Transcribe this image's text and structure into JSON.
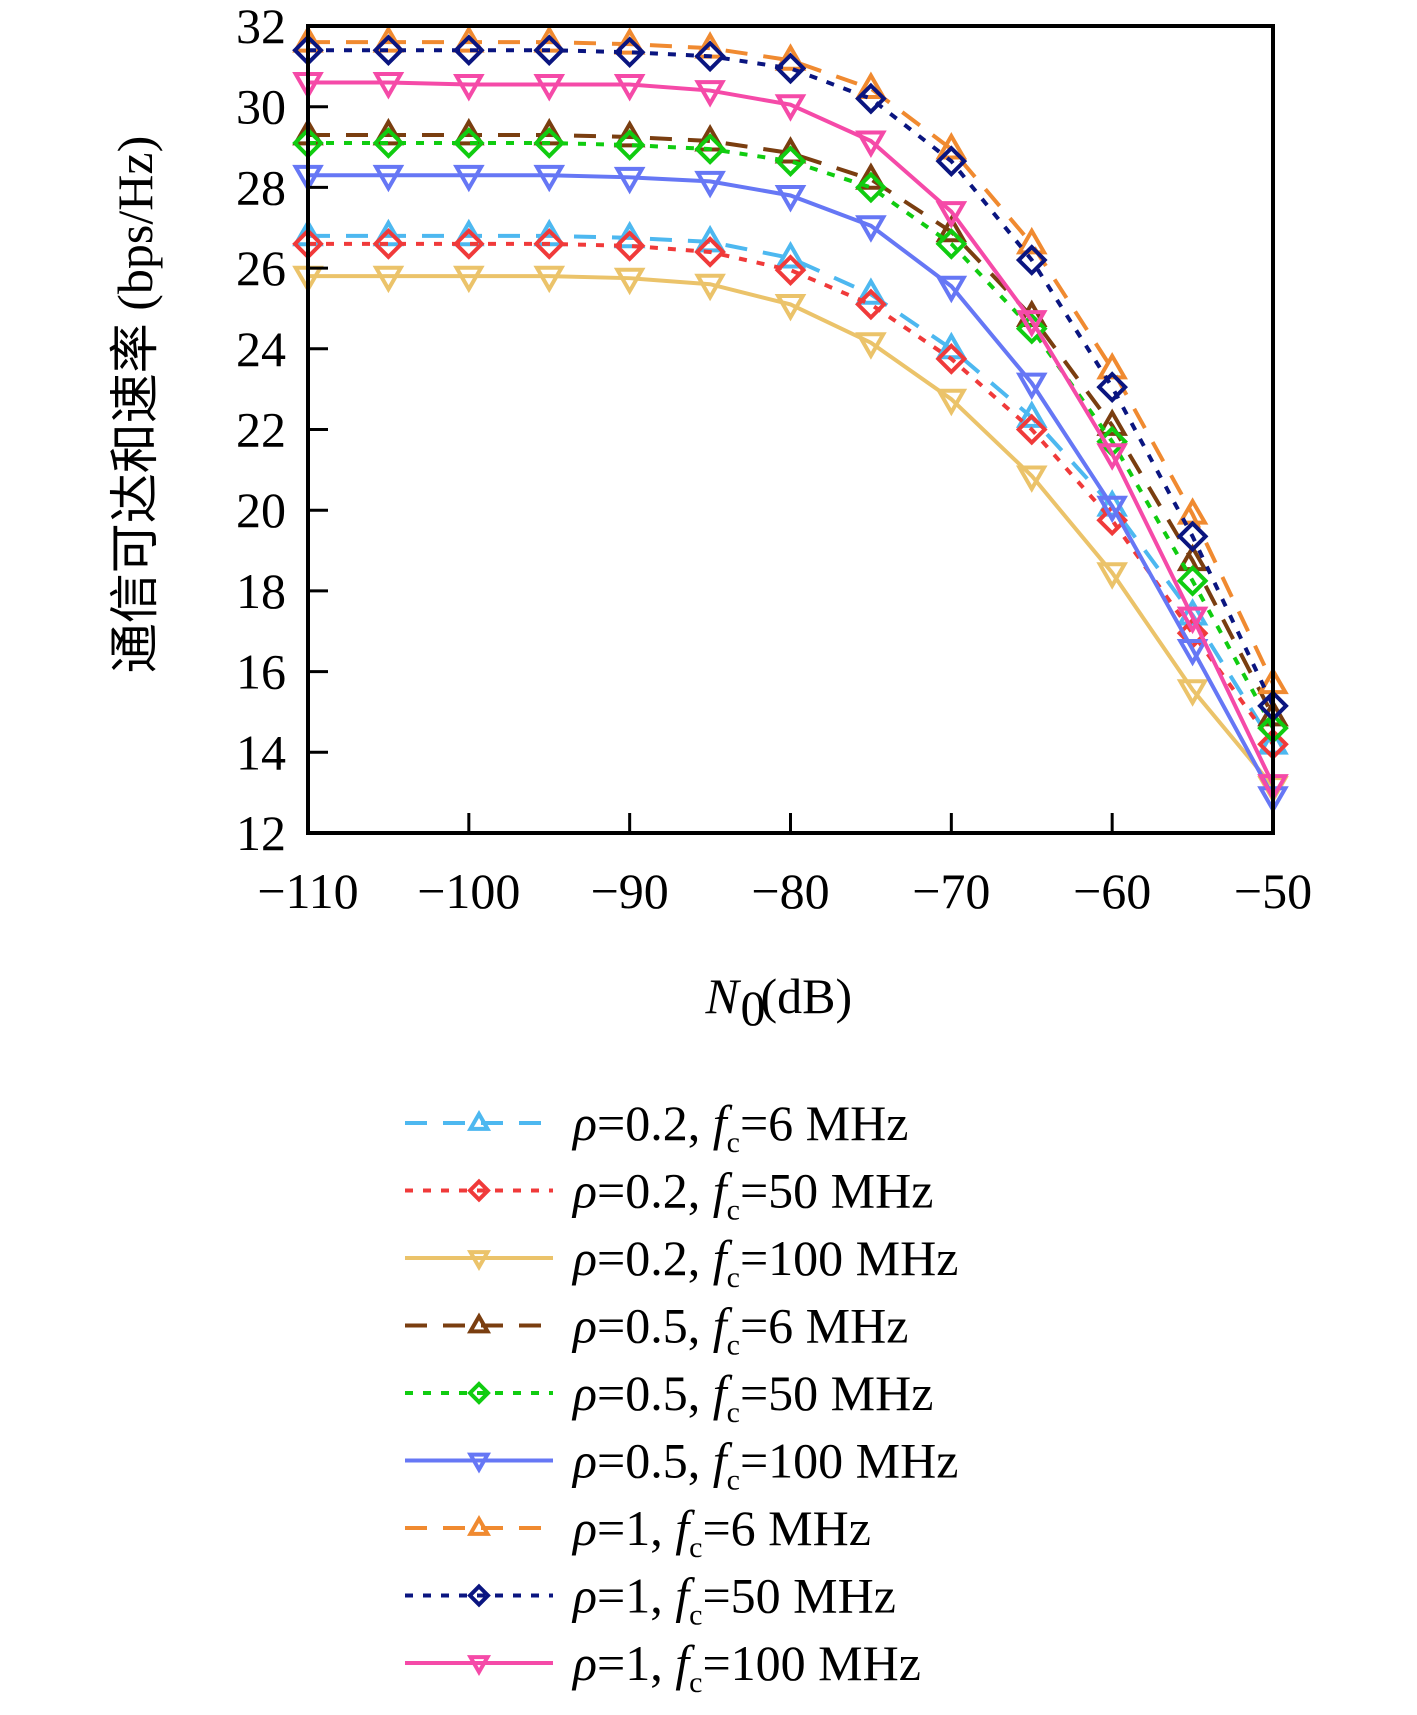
{
  "chart_data": {
    "type": "line",
    "title": "",
    "xlabel": "N0 (dB)",
    "xlabel_main": "N",
    "xlabel_sub": "0",
    "xlabel_unit": " (dB)",
    "ylabel": "通信可达和速率 (bps/Hz)",
    "xlim": [
      -110,
      -50
    ],
    "ylim": [
      12,
      32
    ],
    "xticks": [
      -110,
      -100,
      -90,
      -80,
      -70,
      -60,
      -50
    ],
    "xtick_labels": [
      "−110",
      "−100",
      "−90",
      "−80",
      "−70",
      "−60",
      "−50"
    ],
    "yticks": [
      12,
      14,
      16,
      18,
      20,
      22,
      24,
      26,
      28,
      30,
      32
    ],
    "ytick_labels": [
      "12",
      "14",
      "16",
      "18",
      "20",
      "22",
      "24",
      "26",
      "28",
      "30",
      "32"
    ],
    "grid": false,
    "legend_position": "below",
    "x": [
      -110,
      -105,
      -100,
      -95,
      -90,
      -85,
      -80,
      -75,
      -70,
      -65,
      -60,
      -55,
      -50
    ],
    "series": [
      {
        "name": "ρ=0.2, fc=6 MHz",
        "rho": "0.2",
        "fc": "6 MHz",
        "color": "#4db8f0",
        "dash": "dashed",
        "marker": "triangle-up",
        "values": [
          26.8,
          26.8,
          26.8,
          26.8,
          26.75,
          26.65,
          26.25,
          25.35,
          24.0,
          22.3,
          20.1,
          17.4,
          14.2
        ]
      },
      {
        "name": "ρ=0.2, fc=50 MHz",
        "rho": "0.2",
        "fc": "50 MHz",
        "color": "#f03a3a",
        "dash": "dotted",
        "marker": "diamond",
        "values": [
          26.6,
          26.6,
          26.6,
          26.6,
          26.55,
          26.4,
          25.95,
          25.1,
          23.75,
          22.0,
          19.75,
          16.95,
          14.2
        ]
      },
      {
        "name": "ρ=0.2, fc=100 MHz",
        "rho": "0.2",
        "fc": "100 MHz",
        "color": "#ebc36a",
        "dash": "solid",
        "marker": "triangle-down",
        "values": [
          25.8,
          25.8,
          25.8,
          25.8,
          25.75,
          25.6,
          25.1,
          24.15,
          22.75,
          20.85,
          18.45,
          15.55,
          13.15
        ]
      },
      {
        "name": "ρ=0.5, fc=6 MHz",
        "rho": "0.5",
        "fc": "6 MHz",
        "color": "#7a3e10",
        "dash": "dashed",
        "marker": "triangle-up",
        "values": [
          29.3,
          29.3,
          29.3,
          29.3,
          29.25,
          29.15,
          28.85,
          28.2,
          26.9,
          24.8,
          22.1,
          18.75,
          14.9
        ]
      },
      {
        "name": "ρ=0.5, fc=50 MHz",
        "rho": "0.5",
        "fc": "50 MHz",
        "color": "#10cc10",
        "dash": "dotted",
        "marker": "diamond",
        "values": [
          29.1,
          29.1,
          29.1,
          29.1,
          29.05,
          28.95,
          28.65,
          28.0,
          26.6,
          24.5,
          21.7,
          18.25,
          14.6
        ]
      },
      {
        "name": "ρ=0.5, fc=100 MHz",
        "rho": "0.5",
        "fc": "100 MHz",
        "color": "#6677f5",
        "dash": "solid",
        "marker": "triangle-down",
        "values": [
          28.3,
          28.3,
          28.3,
          28.3,
          28.25,
          28.15,
          27.8,
          27.05,
          25.55,
          23.15,
          20.1,
          16.55,
          12.9
        ]
      },
      {
        "name": "ρ=1, fc=6 MHz",
        "rho": "1",
        "fc": "6 MHz",
        "color": "#f08a30",
        "dash": "dashed",
        "marker": "triangle-up",
        "values": [
          31.6,
          31.6,
          31.6,
          31.6,
          31.55,
          31.45,
          31.15,
          30.45,
          28.95,
          26.6,
          23.5,
          19.9,
          15.7
        ]
      },
      {
        "name": "ρ=1, fc=50 MHz",
        "rho": "1",
        "fc": "50 MHz",
        "color": "#0a1580",
        "dash": "dotted",
        "marker": "diamond",
        "values": [
          31.4,
          31.4,
          31.4,
          31.4,
          31.35,
          31.25,
          30.95,
          30.2,
          28.65,
          26.2,
          23.05,
          19.35,
          15.15
        ]
      },
      {
        "name": "ρ=1, fc=100 MHz",
        "rho": "1",
        "fc": "100 MHz",
        "color": "#f54aa8",
        "dash": "solid",
        "marker": "triangle-down",
        "values": [
          30.6,
          30.6,
          30.55,
          30.55,
          30.55,
          30.4,
          30.05,
          29.15,
          27.4,
          24.7,
          21.4,
          17.35,
          13.2
        ]
      }
    ]
  }
}
